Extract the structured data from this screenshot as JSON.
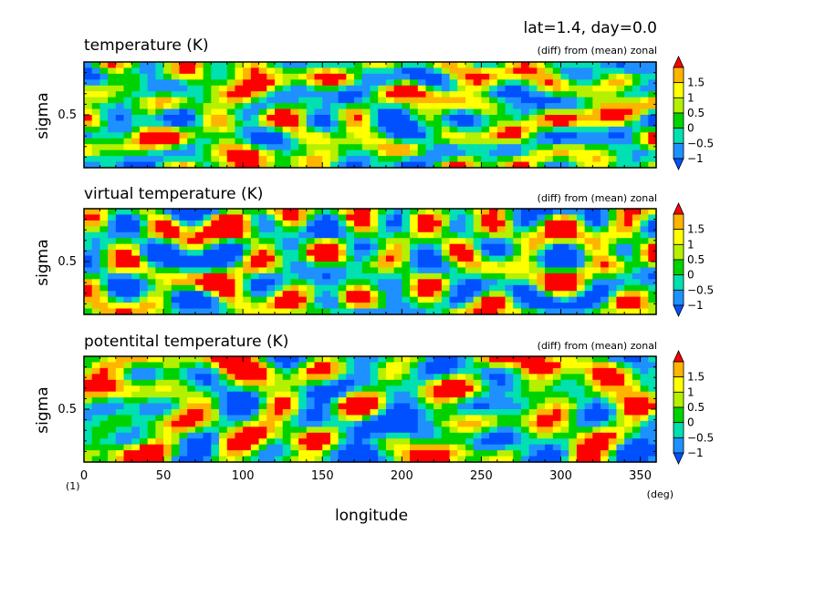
{
  "figure": {
    "header": "lat=1.4, day=0.0",
    "corner_label": "(1)",
    "x_unit": "(deg)",
    "xlabel": "longitude",
    "ylabel": "sigma"
  },
  "colors": {
    "levels": [
      "#0050ff",
      "#1e90ff",
      "#00e0b0",
      "#00d200",
      "#b4f000",
      "#ffff00",
      "#ffb400",
      "#ff0000"
    ],
    "frame": "#000000"
  },
  "chart_data": [
    {
      "type": "heatmap",
      "title": "temperature (K)",
      "annotation": "(diff) from (mean) zonal",
      "xlim": [
        0,
        360
      ],
      "ylim": [
        0,
        1
      ],
      "x_ticks": [
        0,
        50,
        100,
        150,
        200,
        250,
        300,
        350
      ],
      "y_ticks": [
        "0.5"
      ],
      "colorbar_labels": [
        "1.5",
        "1",
        "0.5",
        "0",
        "−0.5",
        "−1"
      ],
      "seed": 11,
      "hotspots": [
        [
          100,
          0.85,
          1.4
        ],
        [
          95,
          0.15,
          1.2
        ],
        [
          240,
          0.85,
          0.9
        ],
        [
          330,
          0.5,
          1.0
        ],
        [
          200,
          0.4,
          -1.0
        ]
      ]
    },
    {
      "type": "heatmap",
      "title": "virtual temperature (K)",
      "annotation": "(diff) from (mean) zonal",
      "xlim": [
        0,
        360
      ],
      "ylim": [
        0,
        1
      ],
      "x_ticks": [
        0,
        50,
        100,
        150,
        200,
        250,
        300,
        350
      ],
      "y_ticks": [
        "0.5"
      ],
      "colorbar_labels": [
        "1.5",
        "1",
        "0.5",
        "0",
        "−0.5",
        "−1"
      ],
      "seed": 23,
      "hotspots": [
        [
          100,
          0.85,
          1.3
        ],
        [
          100,
          0.2,
          0.8
        ],
        [
          240,
          0.85,
          1.0
        ],
        [
          340,
          0.7,
          0.9
        ],
        [
          60,
          0.5,
          -1.1
        ]
      ]
    },
    {
      "type": "heatmap",
      "title": "potentital temperature (K)",
      "annotation": "(diff) from (mean) zonal",
      "xlim": [
        0,
        360
      ],
      "ylim": [
        0,
        1
      ],
      "x_ticks": [
        0,
        50,
        100,
        150,
        200,
        250,
        300,
        350
      ],
      "y_ticks": [
        "0.5"
      ],
      "colorbar_labels": [
        "1.5",
        "1",
        "0.5",
        "0",
        "−0.5",
        "−1"
      ],
      "seed": 37,
      "hotspots": [
        [
          20,
          0.92,
          1.6
        ],
        [
          100,
          0.9,
          1.5
        ],
        [
          95,
          0.2,
          1.4
        ],
        [
          290,
          0.92,
          1.3
        ],
        [
          330,
          0.65,
          1.2
        ],
        [
          200,
          0.35,
          -1.1
        ]
      ]
    }
  ]
}
